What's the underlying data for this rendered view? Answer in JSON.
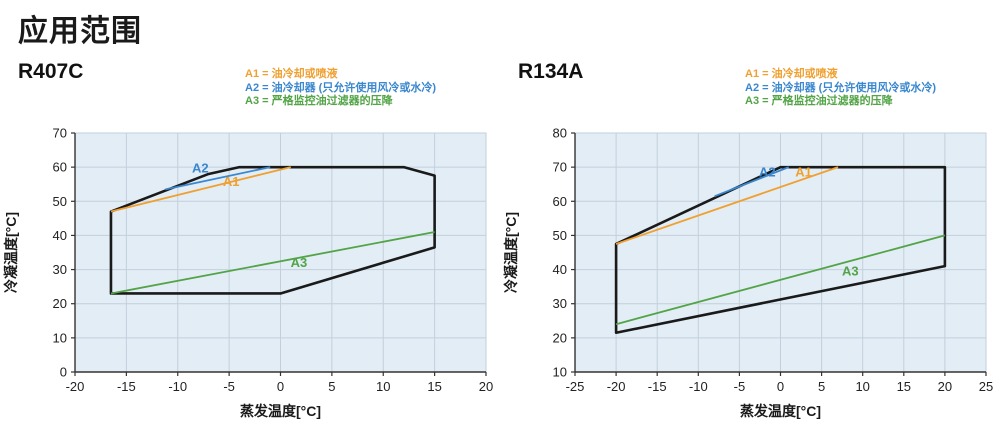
{
  "page": {
    "title": "应用范围"
  },
  "colors": {
    "a1_orange": "#F0A030",
    "a2_blue": "#3A87CE",
    "a3_green": "#52A447",
    "envelope": "#1a1a1a",
    "plot_bg": "#E2EDF5",
    "grid": "#C3CFDC",
    "axis": "#333333"
  },
  "legend": [
    {
      "label": "A1 = 油冷却或喷液",
      "color": "#F0A030"
    },
    {
      "label": "A2 = 油冷却器 (只允许使用风冷或水冷)",
      "color": "#3A87CE"
    },
    {
      "label": "A3 = 严格监控油过滤器的压降",
      "color": "#52A447"
    }
  ],
  "chart_data": [
    {
      "type": "line",
      "name": "R407C",
      "xlabel": "蒸发温度[°C]",
      "ylabel": "冷凝温度[°C]",
      "xlim": [
        -20,
        20
      ],
      "ylim": [
        0,
        70
      ],
      "xticks": [
        -20,
        -15,
        -10,
        -5,
        0,
        5,
        10,
        15,
        20
      ],
      "yticks": [
        0,
        10,
        20,
        30,
        40,
        50,
        60,
        70
      ],
      "grid": true,
      "envelope": [
        [
          -16.5,
          23
        ],
        [
          -16.5,
          47
        ],
        [
          -7,
          58
        ],
        [
          -4,
          60
        ],
        [
          12,
          60
        ],
        [
          15,
          57.5
        ],
        [
          15,
          36.5
        ],
        [
          0,
          23
        ]
      ],
      "series": [
        {
          "name": "A1",
          "color": "#F0A030",
          "points": [
            [
              -16.5,
              47
            ],
            [
              1,
              60
            ]
          ],
          "label_pos": [
            -4.8,
            54.5
          ]
        },
        {
          "name": "A2",
          "color": "#3A87CE",
          "points": [
            [
              -11.2,
              53.5
            ],
            [
              -1,
              60
            ]
          ],
          "label_pos": [
            -7.8,
            58.5
          ]
        },
        {
          "name": "A3",
          "color": "#52A447",
          "points": [
            [
              -16.5,
              23
            ],
            [
              15,
              41
            ]
          ],
          "label_pos": [
            1.8,
            30.8
          ]
        }
      ]
    },
    {
      "type": "line",
      "name": "R134A",
      "xlabel": "蒸发温度[°C]",
      "ylabel": "冷凝温度[°C]",
      "xlim": [
        -25,
        25
      ],
      "ylim": [
        10,
        80
      ],
      "xticks": [
        -25,
        -20,
        -15,
        -10,
        -5,
        0,
        5,
        10,
        15,
        20,
        25
      ],
      "yticks": [
        10,
        20,
        30,
        40,
        50,
        60,
        70,
        80
      ],
      "grid": true,
      "envelope": [
        [
          -20,
          21.5
        ],
        [
          -20,
          47.5
        ],
        [
          0,
          70
        ],
        [
          20,
          70
        ],
        [
          20,
          41
        ]
      ],
      "series": [
        {
          "name": "A1",
          "color": "#F0A030",
          "points": [
            [
              -20,
              47.5
            ],
            [
              7,
              70
            ]
          ],
          "label_pos": [
            2.8,
            67.3
          ]
        },
        {
          "name": "A2",
          "color": "#3A87CE",
          "points": [
            [
              -8,
              61.5
            ],
            [
              1,
              70
            ]
          ],
          "label_pos": [
            -1.6,
            67.3
          ]
        },
        {
          "name": "A3",
          "color": "#52A447",
          "points": [
            [
              -20,
              24
            ],
            [
              20,
              50
            ]
          ],
          "label_pos": [
            8.5,
            38.2
          ]
        }
      ]
    }
  ]
}
